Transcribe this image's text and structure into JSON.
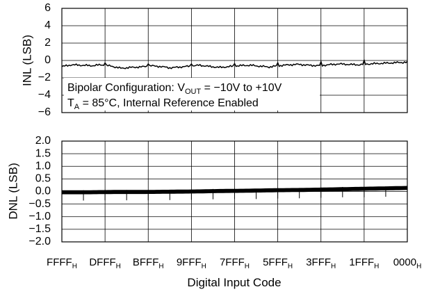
{
  "chart_data": [
    {
      "type": "line",
      "ylabel": "INL (LSB)",
      "ylim": [
        -6,
        6
      ],
      "yticks": [
        "6",
        "4",
        "2",
        "0",
        "−2",
        "−4",
        "−6"
      ],
      "grid": true,
      "annotation": {
        "line1_prefix": "Bipolar Configuration: V",
        "line1_sub": "OUT",
        "line1_suffix": " = −10V to +10V",
        "line2_prefix": "T",
        "line2_sub": "A",
        "line2_suffix": " = 85°C, Internal Reference Enabled"
      },
      "series": [
        {
          "description": "INL vs input code",
          "x_code_range": [
            "FFFF",
            "0000"
          ],
          "values": [
            -0.7,
            -0.5,
            -0.55,
            -0.6,
            -0.5,
            -0.65,
            -0.9,
            -0.8,
            -0.75,
            -0.6,
            -0.7,
            -0.85,
            -0.75,
            -0.65,
            -0.55,
            -0.7,
            -0.8,
            -0.7,
            -0.6,
            -0.55,
            -0.65,
            -0.75,
            -0.6,
            -0.5,
            -0.45,
            -0.55,
            -0.6,
            -0.5,
            -0.4,
            -0.45,
            -0.5,
            -0.4,
            -0.35,
            -0.3,
            -0.25,
            -0.2
          ]
        }
      ]
    },
    {
      "type": "line",
      "ylabel": "DNL (LSB)",
      "ylim": [
        -2.0,
        2.0
      ],
      "yticks": [
        "2.0",
        "1.5",
        "1.0",
        "0.5",
        "0.0",
        "−0.5",
        "−1.0",
        "−1.5",
        "−2.0"
      ],
      "grid": true,
      "series": [
        {
          "description": "DNL vs input code",
          "values": [
            -0.03,
            -0.03,
            -0.02,
            -0.02,
            -0.01,
            0.0,
            0.02,
            0.03,
            0.05,
            0.06,
            0.08,
            0.1,
            0.12,
            0.14
          ],
          "band_halfwidth": 0.08
        }
      ]
    }
  ],
  "x_axis": {
    "ticks": [
      {
        "main": "FFFF",
        "sub": "H"
      },
      {
        "main": "DFFF",
        "sub": "H"
      },
      {
        "main": "BFFF",
        "sub": "H"
      },
      {
        "main": "9FFF",
        "sub": "H"
      },
      {
        "main": "7FFF",
        "sub": "H"
      },
      {
        "main": "5FFF",
        "sub": "H"
      },
      {
        "main": "3FFF",
        "sub": "H"
      },
      {
        "main": "1FFF",
        "sub": "H"
      },
      {
        "main": "0000",
        "sub": "H"
      }
    ],
    "label": "Digital Input Code"
  }
}
